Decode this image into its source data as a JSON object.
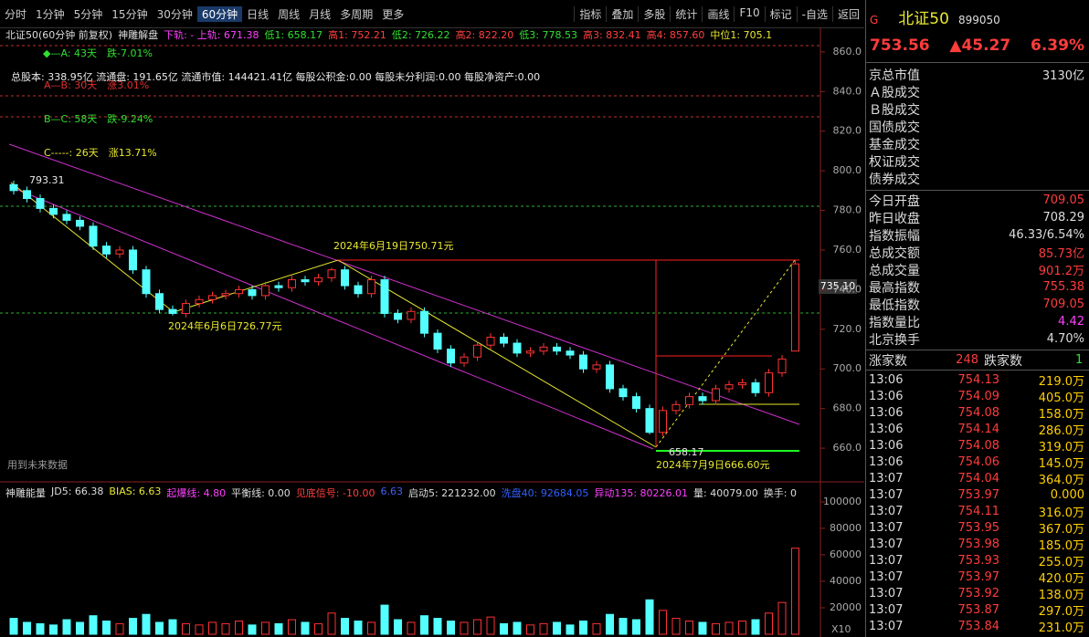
{
  "toolbar": {
    "left": [
      "分时",
      "1分钟",
      "5分钟",
      "15分钟",
      "30分钟",
      "60分钟",
      "日线",
      "周线",
      "月线",
      "多周期",
      "更多"
    ],
    "right": [
      "指标",
      "叠加",
      "多股",
      "统计",
      "画线",
      "F10",
      "标记",
      "-自选",
      "返回"
    ]
  },
  "info_line": [
    "北证50(60分钟 前复权)",
    "神雕解盘",
    "下轨: - 上轨: 671.38",
    "低1: 658.17",
    "高1: 752.21",
    "低2: 726.22",
    "高2: 822.20",
    "低3: 778.53",
    "高3: 832.41",
    "高4: 857.60",
    "中位1: 705.1"
  ],
  "indicator_header": [
    "神雕能量",
    "JD5: 66.38",
    "BIAS: 6.63",
    "起爆线: 4.80",
    "平衡线: 0.00",
    "见底信号: -10.00",
    "6.63",
    "启动5: 221232.00",
    "洗盘40: 92684.05",
    "异动135: 80226.01",
    "量: 40079.00",
    "换手: 0"
  ],
  "chart_data": [
    {
      "type": "candlestick",
      "open": [
        793,
        790,
        786,
        781,
        778,
        775,
        772,
        762,
        758,
        760,
        750,
        738,
        730,
        728,
        733,
        735,
        737,
        738,
        740,
        737,
        742,
        741,
        745,
        744,
        746,
        750,
        742,
        738,
        745,
        728,
        725,
        729,
        718,
        710,
        703,
        706,
        712,
        716,
        713,
        708,
        709,
        711,
        709,
        707,
        700,
        702,
        690,
        686,
        680,
        668,
        679,
        682,
        686,
        684,
        690,
        692,
        693,
        688,
        698,
        709
      ],
      "high": [
        795,
        792,
        788,
        783,
        780,
        777,
        774,
        764,
        762,
        762,
        752,
        740,
        732,
        735,
        737,
        739,
        740,
        742,
        742,
        744,
        744,
        747,
        747,
        748,
        751,
        752,
        744,
        747,
        747,
        730,
        731,
        731,
        720,
        712,
        708,
        714,
        718,
        718,
        715,
        711,
        713,
        713,
        711,
        709,
        704,
        704,
        692,
        688,
        682,
        681,
        684,
        688,
        688,
        692,
        694,
        695,
        695,
        700,
        707,
        755
      ],
      "low": [
        788,
        784,
        779,
        776,
        773,
        770,
        760,
        756,
        756,
        748,
        736,
        728,
        727,
        726,
        731,
        733,
        735,
        736,
        735,
        735,
        739,
        739,
        742,
        742,
        744,
        740,
        736,
        736,
        726,
        723,
        723,
        716,
        708,
        701,
        701,
        704,
        710,
        711,
        706,
        706,
        707,
        707,
        705,
        698,
        698,
        688,
        684,
        678,
        667,
        666,
        677,
        680,
        682,
        682,
        688,
        690,
        686,
        686,
        696,
        709
      ],
      "close": [
        790,
        786,
        781,
        778,
        775,
        772,
        762,
        758,
        760,
        750,
        738,
        730,
        728,
        733,
        735,
        737,
        738,
        740,
        737,
        742,
        741,
        745,
        744,
        746,
        750,
        742,
        738,
        745,
        728,
        725,
        729,
        718,
        710,
        703,
        706,
        712,
        716,
        713,
        708,
        709,
        711,
        709,
        707,
        700,
        702,
        690,
        686,
        680,
        668,
        679,
        682,
        686,
        684,
        690,
        692,
        693,
        688,
        698,
        705,
        753
      ],
      "up_color": "#ff3232",
      "down_color": "#54ffff",
      "ylim": [
        643,
        865
      ],
      "yticks": [
        {
          "value": 660,
          "label": "660.0"
        },
        {
          "value": 680,
          "label": "680.0"
        },
        {
          "value": 700,
          "label": "700.0"
        },
        {
          "value": 720,
          "label": "720.0"
        },
        {
          "value": 740,
          "label": "740.0"
        },
        {
          "value": 760,
          "label": "760.0"
        },
        {
          "value": 780,
          "label": "780.0"
        },
        {
          "value": 800,
          "label": "800.0"
        },
        {
          "value": 820,
          "label": "820.0"
        },
        {
          "value": 840,
          "label": "840.0"
        },
        {
          "value": 860,
          "label": "860.0"
        }
      ],
      "cursor_label": "735.10",
      "annotations": [
        "◆—A: 43天　跌-7.01%",
        "总股本: 338.95亿 流通盘: 191.65亿 流通市值: 144421.41亿 每股公积金:0.00 每股未分利润:0.00 每股净资产:0.00",
        "A—B: 30天　涨3.01%",
        "B—C: 58天　跌-9.24%",
        "C-----: 26天　涨13.71%",
        "793.31",
        "2024年6月19日750.71元",
        "2024年6月6日726.77元",
        "658.17",
        "2024年7月9日666.60元",
        "用到未来数据"
      ]
    },
    {
      "type": "bar",
      "values": [
        12000,
        9000,
        8000,
        7000,
        11000,
        9000,
        14000,
        10000,
        8000,
        12000,
        15000,
        9000,
        11000,
        8000,
        7000,
        9000,
        8000,
        10000,
        7000,
        9000,
        8000,
        11000,
        9000,
        8000,
        16000,
        12000,
        10000,
        9000,
        22000,
        11000,
        9000,
        14000,
        12000,
        10000,
        9000,
        11000,
        13000,
        8000,
        9000,
        7000,
        8000,
        9000,
        7000,
        10000,
        8000,
        15000,
        12000,
        11000,
        26000,
        18000,
        12000,
        10000,
        9000,
        8000,
        9000,
        10000,
        11000,
        16000,
        24000,
        65000
      ],
      "ylim": [
        0,
        102000
      ],
      "yticks": [
        20000,
        40000,
        60000,
        80000,
        100000
      ],
      "scale_note": "X10"
    }
  ],
  "quote_panel": {
    "code_prefix": "G",
    "name": "北证50",
    "code": "899050",
    "price": "753.56",
    "change": "▲45.27",
    "change_pct": "6.39%",
    "market_value": [
      "京总市值",
      "3130亿"
    ],
    "turnover_labels": [
      "Ａ股成交",
      "Ｂ股成交",
      "国债成交",
      "基金成交",
      "权证成交",
      "债券成交"
    ],
    "stats": [
      [
        "今日开盘",
        "709.05"
      ],
      [
        "昨日收盘",
        "708.29"
      ],
      [
        "指数振幅",
        "46.33/6.54%"
      ],
      [
        "总成交额",
        "85.73亿"
      ],
      [
        "总成交量",
        "901.2万"
      ],
      [
        "最高指数",
        "755.38"
      ],
      [
        "最低指数",
        "709.05"
      ],
      [
        "指数量比",
        "4.42"
      ],
      [
        "北京换手",
        "4.70%"
      ]
    ],
    "breadth": [
      "涨家数",
      "248",
      "跌家数",
      "1"
    ],
    "ticks": [
      [
        "13:06",
        "754.13",
        "219.0万"
      ],
      [
        "13:06",
        "754.09",
        "405.0万"
      ],
      [
        "13:06",
        "754.08",
        "158.0万"
      ],
      [
        "13:06",
        "754.14",
        "286.0万"
      ],
      [
        "13:06",
        "754.08",
        "319.0万"
      ],
      [
        "13:06",
        "754.06",
        "145.0万"
      ],
      [
        "13:07",
        "754.04",
        "364.0万"
      ],
      [
        "13:07",
        "753.97",
        "0.000"
      ],
      [
        "13:07",
        "754.11",
        "316.0万"
      ],
      [
        "13:07",
        "753.95",
        "367.0万"
      ],
      [
        "13:07",
        "753.98",
        "185.0万"
      ],
      [
        "13:07",
        "753.93",
        "255.0万"
      ],
      [
        "13:07",
        "753.97",
        "420.0万"
      ],
      [
        "13:07",
        "753.92",
        "138.0万"
      ],
      [
        "13:07",
        "753.87",
        "297.0万"
      ],
      [
        "13:07",
        "753.84",
        "231.0万"
      ]
    ]
  }
}
